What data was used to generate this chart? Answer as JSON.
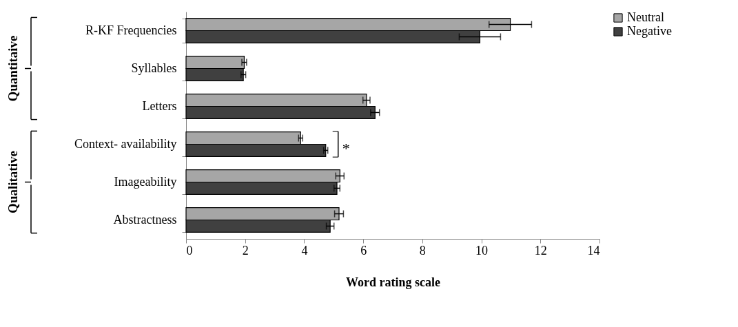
{
  "chart_data": {
    "type": "bar",
    "orientation": "horizontal",
    "xlabel": "Word rating scale",
    "categories": [
      "R-KF Frequencies",
      "Syllables",
      "Letters",
      "Context- availability",
      "Imageability",
      "Abstractness"
    ],
    "series": [
      {
        "name": "Neutral",
        "color": "#a6a6a6",
        "values": [
          10.98,
          1.97,
          6.11,
          3.88,
          5.21,
          5.18
        ],
        "errors": [
          0.72,
          0.08,
          0.12,
          0.07,
          0.14,
          0.15
        ]
      },
      {
        "name": "Negative",
        "color": "#404040",
        "values": [
          9.95,
          1.94,
          6.4,
          4.73,
          5.11,
          4.88
        ],
        "errors": [
          0.7,
          0.08,
          0.15,
          0.07,
          0.1,
          0.13
        ]
      }
    ],
    "xlim": [
      0,
      14
    ],
    "xticks": [
      0,
      2,
      4,
      6,
      8,
      10,
      12,
      14
    ],
    "grid": false,
    "legend": "top right",
    "annotations": [
      "*",
      "Quantitaive",
      "Qualitative"
    ]
  }
}
